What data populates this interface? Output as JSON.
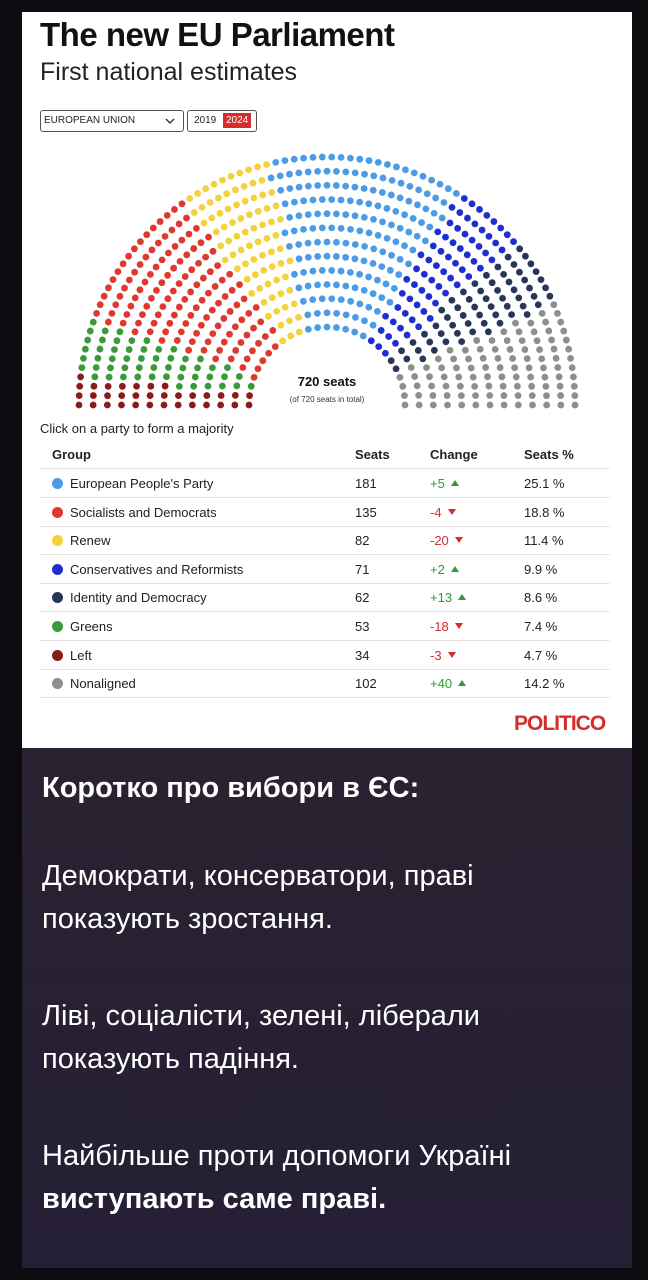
{
  "card": {
    "title": "The new EU Parliament",
    "subtitle": "First national estimates",
    "region": "EUROPEAN UNION",
    "years": [
      "2019",
      "2024"
    ],
    "seats_total": "720 seats",
    "seats_note": "(of 720 seats in total)",
    "hint": "Click on a party to form a majority",
    "columns": [
      "Group",
      "Seats",
      "Change",
      "Seats %"
    ],
    "parties": [
      {
        "name": "European People's Party",
        "color": "#4c9be6",
        "seats": 181,
        "change": "+5",
        "share": "25.1 %"
      },
      {
        "name": "Socialists and Democrats",
        "color": "#e0382e",
        "seats": 135,
        "change": "-4",
        "share": "18.8 %"
      },
      {
        "name": "Renew",
        "color": "#f4d23c",
        "seats": 82,
        "change": "-20",
        "share": "11.4 %"
      },
      {
        "name": "Conservatives and Reformists",
        "color": "#1d2fd2",
        "seats": 71,
        "change": "+2",
        "share": "9.9 %"
      },
      {
        "name": "Identity and Democracy",
        "color": "#283659",
        "seats": 62,
        "change": "+13",
        "share": "8.6 %"
      },
      {
        "name": "Greens",
        "color": "#399a3a",
        "seats": 53,
        "change": "-18",
        "share": "7.4 %"
      },
      {
        "name": "Left",
        "color": "#8b1a1a",
        "seats": 34,
        "change": "-3",
        "share": "4.7 %"
      },
      {
        "name": "Nonaligned",
        "color": "#8e8e8e",
        "seats": 102,
        "change": "+40",
        "share": "14.2 %"
      }
    ],
    "source": "POLITICO"
  },
  "post": {
    "heading": "Коротко про вибори в ЄС:",
    "paragraphs": [
      [
        "Демократи, консерватори, праві",
        "показують зростання."
      ],
      [
        "Ліві, соціалісти, зелені, ліберали",
        "показують падіння."
      ],
      [
        "Найбільше проти допомоги Україні"
      ]
    ],
    "emphasis": "виступають саме праві."
  }
}
